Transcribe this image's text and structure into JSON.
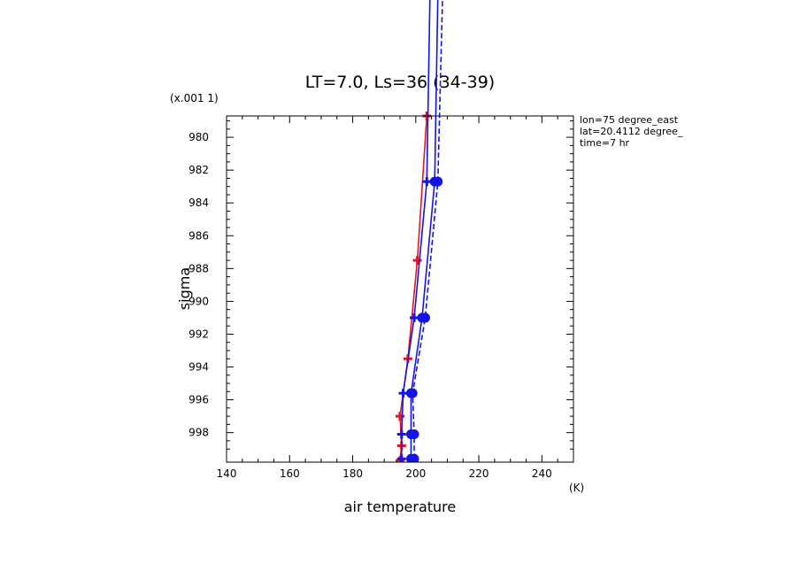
{
  "chart_data": {
    "type": "line",
    "title": "LT=7.0, Ls=36 (34-39)",
    "xlabel": "air temperature",
    "xunit": "(K)",
    "ylabel": "sigma",
    "yscale_label": "(x.001 1)",
    "info": [
      "lon=75 degree_east",
      "lat=20.4112 degree_",
      "time=7 hr"
    ],
    "xlim": [
      140,
      250
    ],
    "ylim": [
      999.8,
      978.7
    ],
    "xticks": [
      140,
      160,
      180,
      200,
      220,
      240
    ],
    "yticks": [
      980,
      982,
      984,
      986,
      988,
      990,
      992,
      994,
      996,
      998
    ],
    "grid": false,
    "series": [
      {
        "color": "#e8141c",
        "style": "solid",
        "marker": "plus",
        "points": [
          [
            195,
            999.7
          ],
          [
            195.5,
            998.8
          ],
          [
            195,
            997
          ],
          [
            197.5,
            993.5
          ],
          [
            200.5,
            987.5
          ],
          [
            203.5,
            978.7
          ]
        ]
      },
      {
        "color": "#1414e8",
        "style": "solid",
        "marker": "plus",
        "points": [
          [
            195.5,
            999.6
          ],
          [
            195.5,
            998.1
          ],
          [
            196,
            995.6
          ],
          [
            199.5,
            991
          ],
          [
            203.5,
            982.7
          ],
          [
            205.5,
            960
          ]
        ]
      },
      {
        "color": "#1414e8",
        "style": "solid",
        "marker": "circle",
        "points": [
          [
            198.5,
            999.6
          ],
          [
            198.5,
            998.1
          ],
          [
            198.5,
            995.6
          ],
          [
            202,
            991
          ],
          [
            206,
            982.7
          ],
          [
            208,
            960
          ]
        ]
      },
      {
        "color": "#1414e8",
        "style": "dashed",
        "marker": "circle",
        "points": [
          [
            199.5,
            999.6
          ],
          [
            199.5,
            998.1
          ],
          [
            199,
            995.6
          ],
          [
            203,
            991
          ],
          [
            207,
            982.7
          ],
          [
            210,
            960
          ]
        ]
      }
    ]
  }
}
